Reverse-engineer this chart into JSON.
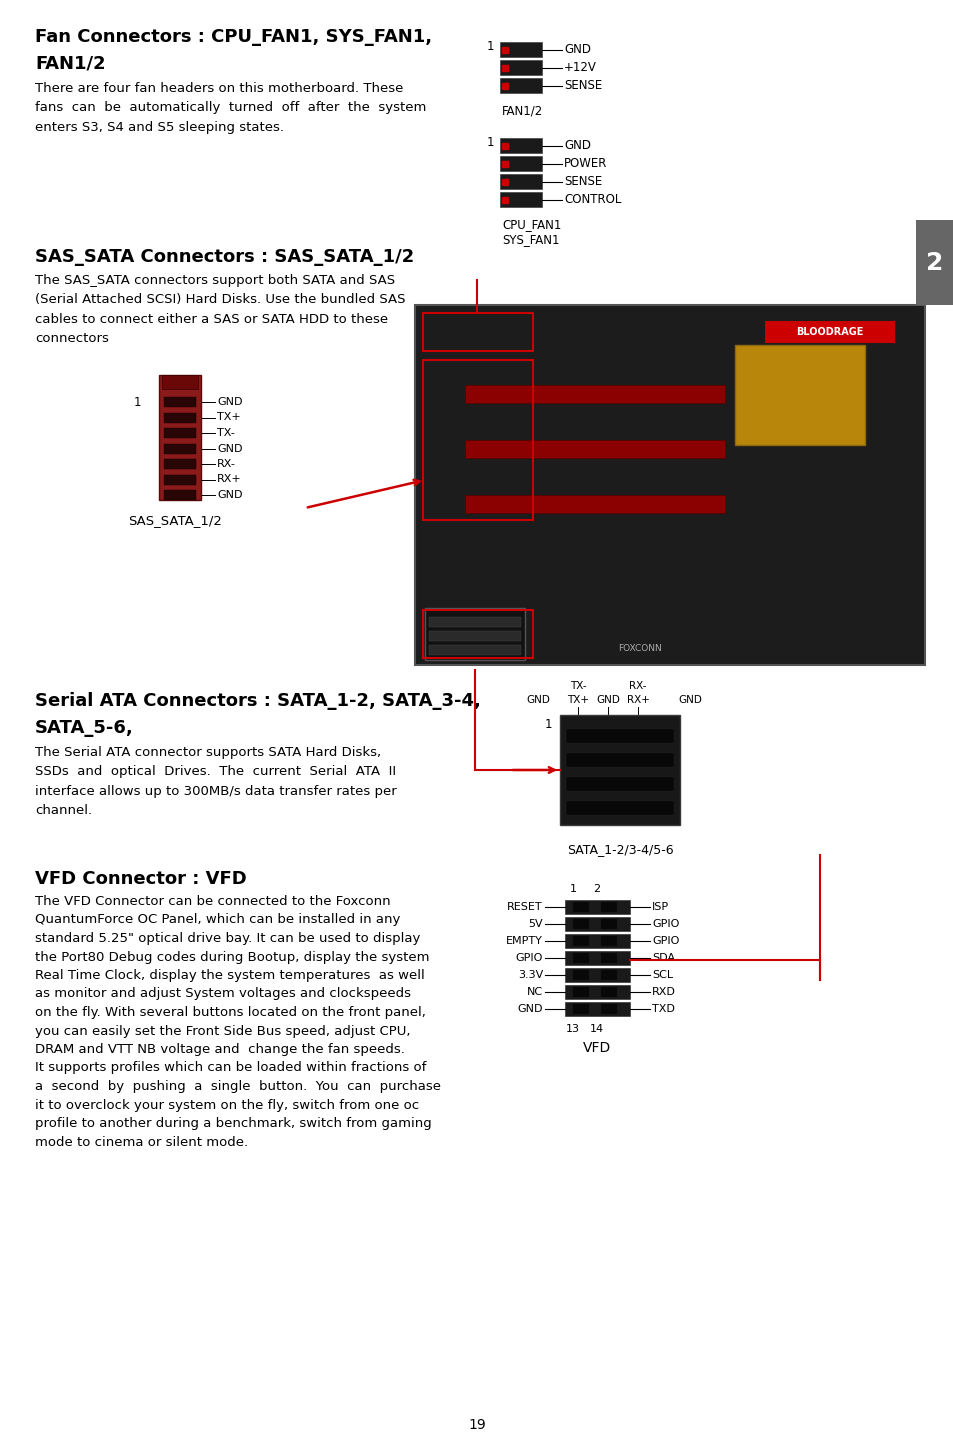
{
  "page_bg": "#ffffff",
  "page_number": "19",
  "fan12_pins": [
    "GND",
    "+12V",
    "SENSE"
  ],
  "cpu_fan_pins": [
    "GND",
    "POWER",
    "SENSE",
    "CONTROL"
  ],
  "sas_sata_pins": [
    "GND",
    "TX+",
    "TX-",
    "GND",
    "RX-",
    "RX+",
    "GND"
  ],
  "vfd_left_pins": [
    "RESET",
    "5V",
    "EMPTY",
    "GPIO",
    "3.3V",
    "NC",
    "GND"
  ],
  "vfd_right_pins": [
    "ISP",
    "GPIO",
    "GPIO",
    "SDA",
    "SCL",
    "RXD",
    "TXD"
  ],
  "red_color": "#cc0000",
  "dark_connector": "#1a1a1a",
  "red_connector": "#8B1A1A"
}
